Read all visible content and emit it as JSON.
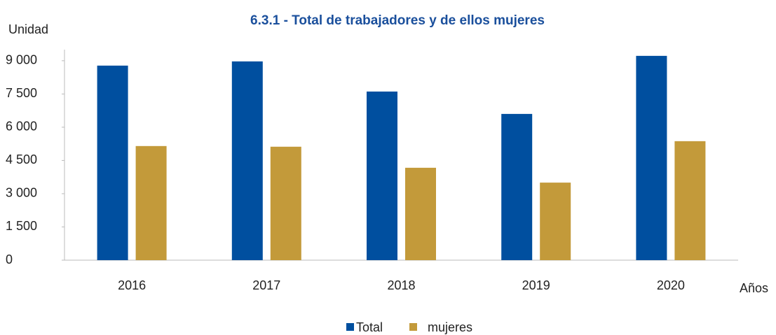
{
  "chart_data": {
    "type": "bar",
    "title": "6.3.1 - Total de trabajadores y de ellos mujeres",
    "y_label": "Unidad",
    "x_label": "Años",
    "categories": [
      "2016",
      "2017",
      "2018",
      "2019",
      "2020"
    ],
    "series": [
      {
        "name": "Total",
        "color": "#004f9f",
        "values": [
          8780,
          8970,
          7610,
          6600,
          9220
        ]
      },
      {
        "name": "mujeres",
        "color": "#c39a3a",
        "values": [
          5150,
          5120,
          4170,
          3500,
          5370
        ]
      }
    ],
    "ylim": [
      0,
      9500
    ],
    "yticks": [
      0,
      {
        "value": 1500,
        "label": "1 500"
      },
      {
        "value": 3000,
        "label": "3 000"
      },
      {
        "value": 4500,
        "label": "4 500"
      },
      {
        "value": 6000,
        "label": "6 000"
      },
      {
        "value": 7500,
        "label": "7 500"
      },
      {
        "value": 9000,
        "label": "9 000"
      }
    ],
    "grid": false
  }
}
